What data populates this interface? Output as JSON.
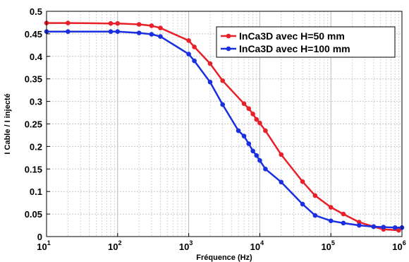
{
  "chart_data": {
    "type": "line",
    "xscale": "log",
    "xlim": [
      10,
      1000000
    ],
    "ylim": [
      0,
      0.5
    ],
    "grid": true,
    "legend_position": "top-right",
    "xlabel": "Fréquence (Hz)",
    "ylabel": "I Cable / I injecté",
    "x_ticks": [
      {
        "value": 10,
        "base": "10",
        "exp": "1"
      },
      {
        "value": 100,
        "base": "10",
        "exp": "2"
      },
      {
        "value": 1000,
        "base": "10",
        "exp": "3"
      },
      {
        "value": 10000,
        "base": "10",
        "exp": "4"
      },
      {
        "value": 100000,
        "base": "10",
        "exp": "5"
      },
      {
        "value": 1000000,
        "base": "10",
        "exp": "6"
      }
    ],
    "y_ticks": [
      {
        "value": 0,
        "label": "0"
      },
      {
        "value": 0.05,
        "label": "0.05"
      },
      {
        "value": 0.1,
        "label": "0.1"
      },
      {
        "value": 0.15,
        "label": "0.15"
      },
      {
        "value": 0.2,
        "label": "0.2"
      },
      {
        "value": 0.25,
        "label": "0.25"
      },
      {
        "value": 0.3,
        "label": "0.3"
      },
      {
        "value": 0.35,
        "label": "0.35"
      },
      {
        "value": 0.4,
        "label": "0.4"
      },
      {
        "value": 0.45,
        "label": "0.45"
      },
      {
        "value": 0.5,
        "label": "0.5"
      }
    ],
    "series": [
      {
        "name": "InCa3D avec H=50 mm",
        "color": "#e8202a",
        "x": [
          10,
          20,
          80,
          100,
          200,
          300,
          400,
          1000,
          1200,
          2000,
          3000,
          6000,
          7000,
          8000,
          9000,
          10000,
          12000,
          20000,
          40000,
          60000,
          100000,
          150000,
          250000,
          400000,
          550000,
          900000
        ],
        "y": [
          0.474,
          0.474,
          0.473,
          0.473,
          0.471,
          0.468,
          0.463,
          0.435,
          0.421,
          0.384,
          0.346,
          0.295,
          0.284,
          0.272,
          0.26,
          0.252,
          0.235,
          0.182,
          0.122,
          0.091,
          0.065,
          0.05,
          0.032,
          0.022,
          0.016,
          0.014
        ]
      },
      {
        "name": "InCa3D avec H=100 mm",
        "color": "#1a2fe0",
        "x": [
          10,
          20,
          80,
          100,
          200,
          300,
          400,
          1000,
          1200,
          2000,
          3000,
          5000,
          6000,
          7000,
          8000,
          9000,
          10000,
          12000,
          20000,
          40000,
          60000,
          100000,
          150000,
          250000,
          400000,
          550000,
          800000,
          1000000
        ],
        "y": [
          0.455,
          0.455,
          0.455,
          0.455,
          0.452,
          0.449,
          0.444,
          0.405,
          0.39,
          0.343,
          0.293,
          0.235,
          0.223,
          0.206,
          0.19,
          0.18,
          0.169,
          0.15,
          0.121,
          0.072,
          0.047,
          0.035,
          0.03,
          0.025,
          0.022,
          0.021,
          0.02,
          0.02
        ]
      }
    ]
  }
}
